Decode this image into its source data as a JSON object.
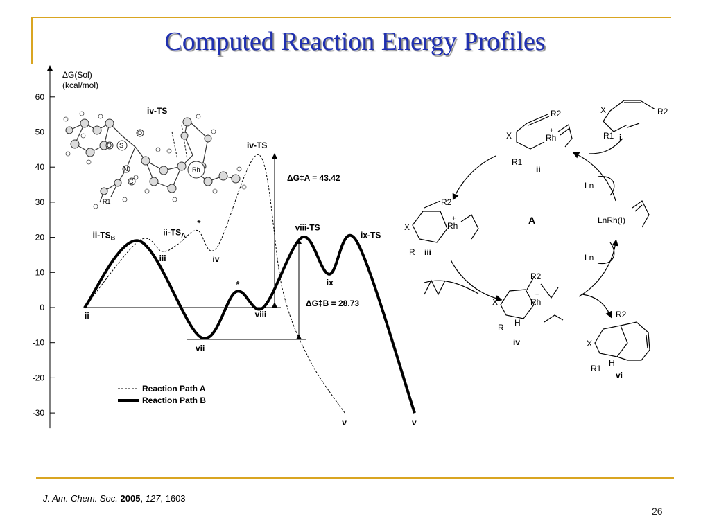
{
  "title": "Computed Reaction Energy Profiles",
  "citation": {
    "journal": "J. Am. Chem. Soc.",
    "year": "2005",
    "volume": "127",
    "pages": "1603"
  },
  "page_number": "26",
  "chart_data": {
    "type": "line",
    "ylabel_line1": "ΔG(Sol)",
    "ylabel_line2": "(kcal/mol)",
    "ylim": [
      -30,
      60
    ],
    "yticks": [
      60,
      50,
      40,
      30,
      20,
      10,
      0,
      -10,
      -20,
      -30
    ],
    "grid": false,
    "legend_position": "bottom-left",
    "series": [
      {
        "name": "Reaction Path A",
        "style": "dashed",
        "points": [
          [
            0,
            0
          ],
          [
            0.7,
            19
          ],
          [
            1,
            16
          ],
          [
            1.2,
            18
          ],
          [
            1.45,
            22
          ],
          [
            1.7,
            17
          ],
          [
            2.25,
            43.42
          ],
          [
            2.55,
            5
          ],
          [
            2.9,
            -15
          ],
          [
            3.35,
            -30
          ]
        ]
      },
      {
        "name": "Reaction Path B",
        "style": "solid",
        "points": [
          [
            0,
            0
          ],
          [
            0.7,
            19
          ],
          [
            1.5,
            -8.5
          ],
          [
            1.95,
            4.5
          ],
          [
            2.3,
            0
          ],
          [
            2.8,
            20
          ],
          [
            3.15,
            9.5
          ],
          [
            3.5,
            19
          ],
          [
            4.25,
            -30
          ]
        ]
      }
    ],
    "point_labels": [
      {
        "text": "ii",
        "x": 0,
        "y": 0
      },
      {
        "text": "ii-TS",
        "sub": "B",
        "x": 0.55,
        "y": 19
      },
      {
        "text": "ii-TS",
        "sub": "A",
        "x": 1.1,
        "y": 19
      },
      {
        "text": "iii",
        "x": 1.05,
        "y": 16
      },
      {
        "text": "*",
        "x": 1.45,
        "y": 22
      },
      {
        "text": "iv",
        "x": 1.7,
        "y": 17
      },
      {
        "text": "iv-TS",
        "x": 2.25,
        "y": 43.42
      },
      {
        "text": "*",
        "x": 1.95,
        "y": 4.5
      },
      {
        "text": "vii",
        "x": 1.5,
        "y": -8.5
      },
      {
        "text": "viii",
        "x": 2.3,
        "y": 0
      },
      {
        "text": "viii-TS",
        "x": 2.8,
        "y": 20
      },
      {
        "text": "ix",
        "x": 3.15,
        "y": 9.5
      },
      {
        "text": "ix-TS",
        "x": 3.5,
        "y": 19
      },
      {
        "text": "v",
        "x": 3.35,
        "y": -30
      },
      {
        "text": "v",
        "x": 4.25,
        "y": -30
      }
    ],
    "annotations": [
      {
        "text": "ΔG‡A = 43.42",
        "value": 43.42
      },
      {
        "text": "ΔG‡B = 28.73",
        "value": 28.73
      }
    ]
  },
  "structure_labels": {
    "ts_model": "iv-TS",
    "atom_O1": "O",
    "atom_O2": "O",
    "atom_S": "S",
    "atom_N": "N",
    "atom_C": "C",
    "atom_Rh": "Rh",
    "atom_R1": "R1"
  },
  "cycle": {
    "center": "A",
    "i_label": "i",
    "i_X": "X",
    "i_R2": "R2",
    "i_R1": "R1",
    "ii_label": "ii",
    "ii_X": "X",
    "ii_R2": "R2",
    "ii_R1": "R1",
    "ii_Rh": "Rh",
    "ii_plus": "+",
    "iii_label": "iii",
    "iii_X": "X",
    "iii_R2": "R2",
    "iii_R": "R",
    "iii_Rh": "Rh",
    "iii_plus": "+",
    "iv_label": "iv",
    "iv_X": "X",
    "iv_R2": "R2",
    "iv_R": "R",
    "iv_H": "H",
    "iv_Rh": "Rh",
    "iv_plus": "+",
    "vi_label": "vi",
    "vi_X": "X",
    "vi_R2": "R2",
    "vi_R1": "R1",
    "vi_H": "H",
    "catalyst": "LnRh(I)",
    "ln_top": "Ln",
    "ln_bottom": "Ln"
  }
}
